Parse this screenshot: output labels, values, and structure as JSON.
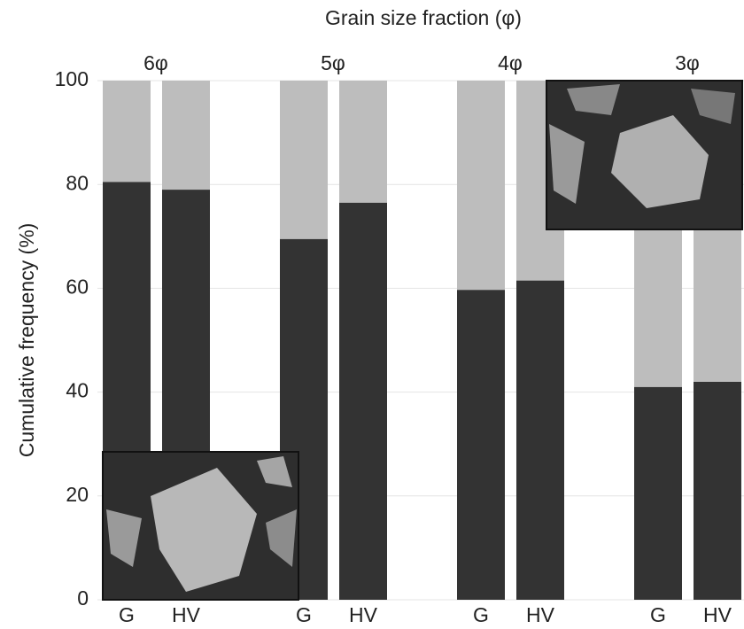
{
  "chart_data": {
    "type": "stacked_bar",
    "title": "Grain size fraction (φ)",
    "y_label": "Cumulative frequency (%)",
    "groups": [
      "6φ",
      "5φ",
      "4φ",
      "3φ"
    ],
    "categories": [
      "G",
      "HV",
      "G",
      "HV",
      "G",
      "HV",
      "G",
      "HV"
    ],
    "series": [
      {
        "color": "#333333",
        "values": [
          80.5,
          79,
          69.5,
          76.5,
          59.7,
          61.5,
          41,
          42
        ]
      },
      {
        "color": "#bdbdbd",
        "values": [
          19.5,
          21,
          30.5,
          23.5,
          40.3,
          38.5,
          59,
          58
        ]
      }
    ],
    "ylim": [
      0,
      100
    ],
    "yticks": [
      0,
      20,
      40,
      60,
      80,
      100
    ],
    "grid": true
  }
}
